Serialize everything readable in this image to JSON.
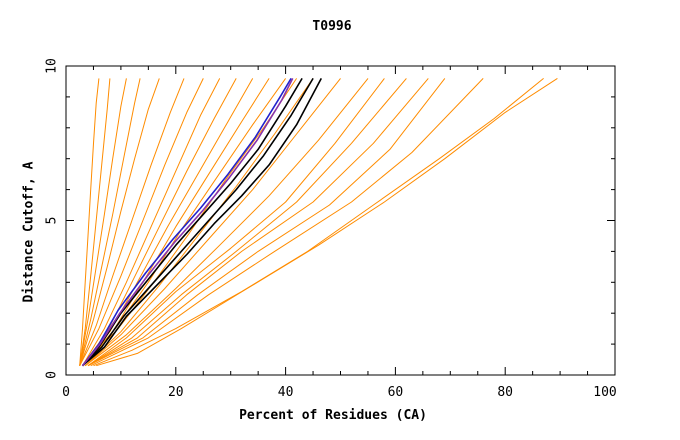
{
  "chart_data": {
    "type": "line",
    "title": "T0996",
    "xlabel": "Percent of Residues (CA)",
    "ylabel": "Distance Cutoff, A",
    "xlim": [
      0,
      100
    ],
    "ylim": [
      0,
      10
    ],
    "x_ticks": [
      "0",
      "20",
      "40",
      "60",
      "80",
      "100"
    ],
    "y_ticks": [
      "0",
      "5",
      "10"
    ],
    "colors": {
      "orange": "#ff8c00",
      "black": "#000000",
      "blue": "#2222cc",
      "purple": "#8833aa"
    },
    "series": [
      {
        "name": "steep-a",
        "color": "orange",
        "x": [
          2.5,
          3.0,
          3.5,
          4.0,
          4.5,
          5.0,
          5.5,
          6.0
        ],
        "y": [
          0.3,
          1.5,
          3.0,
          4.5,
          6.0,
          7.5,
          8.8,
          9.6
        ]
      },
      {
        "name": "steep-b",
        "color": "orange",
        "x": [
          2.5,
          3.5,
          4.5,
          5.5,
          6.5,
          7.5,
          8.0
        ],
        "y": [
          0.3,
          1.5,
          3.2,
          5.0,
          6.8,
          8.6,
          9.6
        ]
      },
      {
        "name": "steep-c",
        "color": "orange",
        "x": [
          2.5,
          4.0,
          5.5,
          7.0,
          8.5,
          10.0,
          11.0
        ],
        "y": [
          0.3,
          1.8,
          3.5,
          5.2,
          7.0,
          8.7,
          9.6
        ]
      },
      {
        "name": "steep-d",
        "color": "orange",
        "x": [
          2.5,
          4.5,
          6.5,
          8.5,
          10.5,
          12.5,
          13.5
        ],
        "y": [
          0.3,
          1.8,
          3.5,
          5.2,
          7.0,
          8.8,
          9.6
        ]
      },
      {
        "name": "steep-e",
        "color": "orange",
        "x": [
          2.5,
          5.0,
          7.5,
          10.0,
          12.5,
          15.0,
          17.0
        ],
        "y": [
          0.3,
          1.8,
          3.5,
          5.3,
          7.0,
          8.6,
          9.6
        ]
      },
      {
        "name": "mid-a",
        "color": "orange",
        "x": [
          2.5,
          5.5,
          8.5,
          12.0,
          15.5,
          19.0,
          21.5
        ],
        "y": [
          0.3,
          1.6,
          3.2,
          5.0,
          6.8,
          8.5,
          9.6
        ]
      },
      {
        "name": "mid-b",
        "color": "orange",
        "x": [
          2.5,
          6.0,
          10.0,
          14.0,
          18.0,
          22.0,
          25.0
        ],
        "y": [
          0.3,
          1.5,
          3.2,
          5.0,
          6.8,
          8.5,
          9.6
        ]
      },
      {
        "name": "mid-c",
        "color": "orange",
        "x": [
          3.0,
          7.0,
          11.0,
          15.5,
          20.0,
          24.5,
          28.0
        ],
        "y": [
          0.3,
          1.5,
          3.0,
          4.8,
          6.6,
          8.4,
          9.6
        ]
      },
      {
        "name": "mid-d",
        "color": "orange",
        "x": [
          3.0,
          7.5,
          12.0,
          17.0,
          22.0,
          27.0,
          31.0
        ],
        "y": [
          0.3,
          1.4,
          3.0,
          4.8,
          6.6,
          8.3,
          9.6
        ]
      },
      {
        "name": "mid-e",
        "color": "orange",
        "x": [
          3.0,
          8.0,
          13.0,
          18.5,
          24.0,
          29.5,
          34.0
        ],
        "y": [
          0.3,
          1.4,
          3.0,
          4.8,
          6.5,
          8.2,
          9.6
        ]
      },
      {
        "name": "mid-f",
        "color": "orange",
        "x": [
          3.0,
          8.5,
          14.0,
          20.0,
          26.0,
          32.0,
          37.0
        ],
        "y": [
          0.3,
          1.4,
          3.0,
          4.8,
          6.5,
          8.2,
          9.6
        ]
      },
      {
        "name": "mid-g",
        "color": "orange",
        "x": [
          3.0,
          9.0,
          15.0,
          21.0,
          27.5,
          34.0,
          40.0
        ],
        "y": [
          0.3,
          1.5,
          3.0,
          4.7,
          6.4,
          8.1,
          9.6
        ]
      },
      {
        "name": "mid-h",
        "color": "orange",
        "x": [
          3.0,
          9.5,
          16.0,
          22.5,
          29.0,
          36.0,
          42.0
        ],
        "y": [
          0.3,
          1.5,
          3.0,
          4.6,
          6.3,
          8.0,
          9.6
        ]
      },
      {
        "name": "wide-a",
        "color": "orange",
        "x": [
          3.5,
          10.0,
          17.0,
          24.0,
          31.0,
          38.0,
          45.0
        ],
        "y": [
          0.3,
          1.4,
          2.9,
          4.5,
          6.1,
          7.8,
          9.6
        ]
      },
      {
        "name": "wide-b",
        "color": "orange",
        "x": [
          3.5,
          10.0,
          18.0,
          26.0,
          34.0,
          42.0,
          50.0
        ],
        "y": [
          0.3,
          1.3,
          2.8,
          4.4,
          6.0,
          7.8,
          9.6
        ]
      },
      {
        "name": "wide-c",
        "color": "orange",
        "x": [
          3.5,
          11.0,
          20.0,
          28.0,
          37.0,
          46.0,
          55.0
        ],
        "y": [
          0.3,
          1.3,
          2.8,
          4.2,
          5.8,
          7.6,
          9.6
        ]
      },
      {
        "name": "wide-d",
        "color": "orange",
        "x": [
          4.0,
          11.0,
          20.0,
          30.0,
          40.0,
          49.0,
          58.0
        ],
        "y": [
          0.3,
          1.2,
          2.7,
          4.1,
          5.6,
          7.5,
          9.6
        ]
      },
      {
        "name": "wide-e",
        "color": "orange",
        "x": [
          4.0,
          12.0,
          21.0,
          31.0,
          42.0,
          52.0,
          62.0
        ],
        "y": [
          0.3,
          1.2,
          2.6,
          4.0,
          5.6,
          7.5,
          9.6
        ]
      },
      {
        "name": "wide-f",
        "color": "orange",
        "x": [
          4.0,
          13.0,
          22.0,
          32.0,
          45.0,
          56.0,
          66.0
        ],
        "y": [
          0.3,
          1.2,
          2.6,
          4.0,
          5.6,
          7.5,
          9.6
        ]
      },
      {
        "name": "far-a",
        "color": "orange",
        "x": [
          4.0,
          14.0,
          24.0,
          35.0,
          48.0,
          59.0,
          69.0
        ],
        "y": [
          0.3,
          1.2,
          2.6,
          4.0,
          5.5,
          7.3,
          9.6
        ]
      },
      {
        "name": "far-b",
        "color": "orange",
        "x": [
          4.5,
          15.0,
          26.0,
          38.0,
          52.0,
          63.0,
          76.0
        ],
        "y": [
          0.3,
          1.2,
          2.6,
          4.0,
          5.6,
          7.2,
          9.6
        ]
      },
      {
        "name": "far-c",
        "color": "orange",
        "x": [
          5.0,
          12.0,
          20.0,
          32.0,
          44.0,
          56.0,
          68.0,
          78.0,
          87.0
        ],
        "y": [
          0.3,
          0.8,
          1.5,
          2.7,
          4.0,
          5.5,
          7.0,
          8.3,
          9.6
        ]
      },
      {
        "name": "far-d",
        "color": "orange",
        "x": [
          5.5,
          13.0,
          21.0,
          33.0,
          46.0,
          58.0,
          69.0,
          80.0,
          89.5
        ],
        "y": [
          0.3,
          0.7,
          1.5,
          2.8,
          4.2,
          5.6,
          7.0,
          8.5,
          9.6
        ]
      },
      {
        "name": "ref-black-1",
        "color": "black",
        "x": [
          3.0,
          6.0,
          10.0,
          15.0,
          20.0,
          25.0,
          30.0,
          35.0,
          40.0,
          43.0
        ],
        "y": [
          0.3,
          0.9,
          2.0,
          3.1,
          4.2,
          5.2,
          6.2,
          7.3,
          8.7,
          9.6
        ]
      },
      {
        "name": "ref-black-2",
        "color": "black",
        "x": [
          3.0,
          6.5,
          10.5,
          16.0,
          21.0,
          26.0,
          31.0,
          36.0,
          41.0,
          45.0
        ],
        "y": [
          0.3,
          0.9,
          1.9,
          3.0,
          4.0,
          5.0,
          6.0,
          7.1,
          8.4,
          9.6
        ]
      },
      {
        "name": "ref-black-3",
        "color": "black",
        "x": [
          3.0,
          7.0,
          11.0,
          16.5,
          22.0,
          27.0,
          32.0,
          37.0,
          42.0,
          46.5
        ],
        "y": [
          0.3,
          0.9,
          1.9,
          2.9,
          3.9,
          4.9,
          5.8,
          6.8,
          8.1,
          9.6
        ]
      },
      {
        "name": "ref-blue",
        "color": "blue",
        "x": [
          3.0,
          6.0,
          9.5,
          14.5,
          19.5,
          24.5,
          29.5,
          34.5,
          39.0,
          41.0
        ],
        "y": [
          0.3,
          1.0,
          2.1,
          3.3,
          4.4,
          5.4,
          6.5,
          7.7,
          9.0,
          9.6
        ]
      },
      {
        "name": "ref-purple",
        "color": "purple",
        "x": [
          3.0,
          6.2,
          9.8,
          14.8,
          19.8,
          24.8,
          29.8,
          34.8,
          39.3,
          41.3
        ],
        "y": [
          0.3,
          1.0,
          2.0,
          3.2,
          4.3,
          5.3,
          6.4,
          7.6,
          8.9,
          9.6
        ]
      }
    ]
  }
}
